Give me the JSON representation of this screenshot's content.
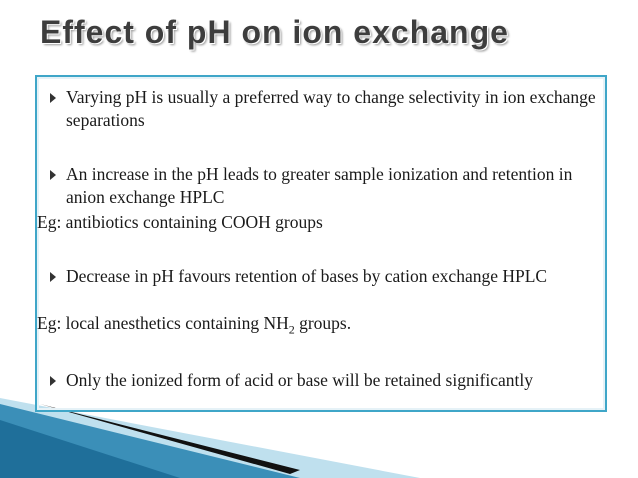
{
  "title": "Effect of pH on ion exchange",
  "items": [
    {
      "kind": "bullet",
      "text": "Varying pH is usually a preferred way to change selectivity in ion exchange separations"
    },
    {
      "kind": "bullet",
      "text": "An increase in the pH leads to greater sample ionization and retention in anion exchange HPLC"
    },
    {
      "kind": "plain",
      "text": "Eg: antibiotics containing COOH groups"
    },
    {
      "kind": "bullet",
      "text": "Decrease in pH favours retention of bases by cation exchange HPLC"
    },
    {
      "kind": "plain",
      "text": "Eg: local anesthetics containing NH",
      "subscript": "2",
      "text_after": " groups."
    },
    {
      "kind": "bullet",
      "text": "Only the ionized form of acid or base will be retained significantly"
    }
  ]
}
